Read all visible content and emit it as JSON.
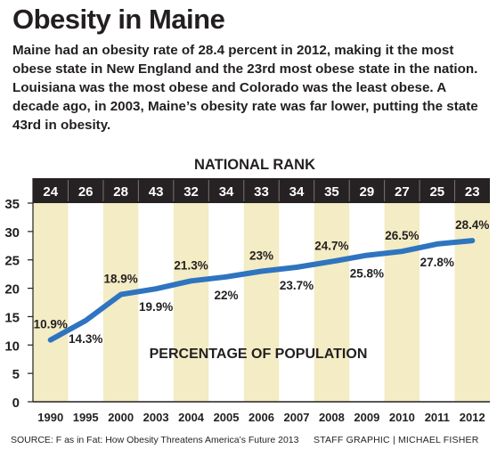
{
  "header": {
    "title": "Obesity in Maine",
    "intro": "Maine had an obesity rate of 28.4 percent in 2012, making it the most obese state in New England and the 23rd most obese state in the nation. Louisiana was the most obese and Colorado was the least obese. A decade ago, in 2003, Maine’s obesity rate was far lower, putting the state 43rd in obesity."
  },
  "footer": {
    "source": "SOURCE: F as in Fat: How Obesity Threatens America’s Future 2013",
    "credit": "STAFF GRAPHIC | MICHAEL FISHER"
  },
  "colors": {
    "line": "#2e74c0",
    "column_band": "#f3ecc4",
    "rank_bar": "#262223",
    "text": "#231f20"
  },
  "chart_data": {
    "type": "line",
    "rank_title": "NATIONAL RANK",
    "inner_label": "PERCENTAGE OF POPULATION",
    "categories": [
      "1990",
      "1995",
      "2000",
      "2003",
      "2004",
      "2005",
      "2006",
      "2007",
      "2008",
      "2009",
      "2010",
      "2011",
      "2012"
    ],
    "national_rank": [
      "24",
      "26",
      "28",
      "43",
      "32",
      "34",
      "33",
      "34",
      "35",
      "29",
      "27",
      "25",
      "23"
    ],
    "values": [
      10.9,
      14.3,
      18.9,
      19.9,
      21.3,
      22,
      23,
      23.7,
      24.7,
      25.8,
      26.5,
      27.8,
      28.4
    ],
    "value_labels": [
      "10.9%",
      "14.3%",
      "18.9%",
      "19.9%",
      "21.3%",
      "22%",
      "23%",
      "23.7%",
      "24.7%",
      "25.8%",
      "26.5%",
      "27.8%",
      "28.4%"
    ],
    "label_position": [
      "above",
      "below",
      "above",
      "below",
      "above",
      "below",
      "above",
      "below",
      "above",
      "below",
      "above",
      "below",
      "above"
    ],
    "yticks": [
      "0",
      "5",
      "10",
      "15",
      "20",
      "25",
      "30",
      "35"
    ],
    "ylim": [
      0,
      35
    ],
    "shaded_columns": [
      "1990",
      "2000",
      "2004",
      "2006",
      "2008",
      "2010",
      "2012"
    ]
  }
}
